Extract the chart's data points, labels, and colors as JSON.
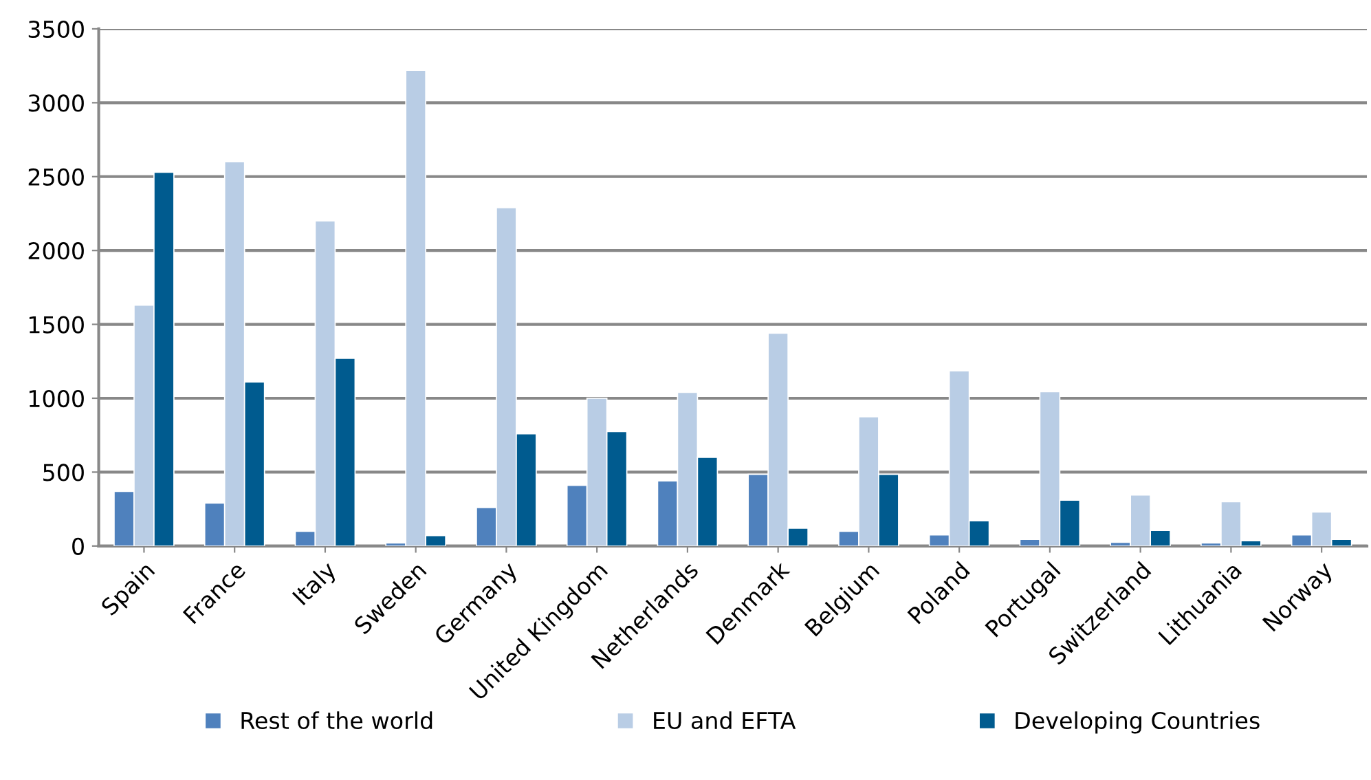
{
  "chart_data": {
    "type": "bar",
    "categories": [
      "Spain",
      "France",
      "Italy",
      "Sweden",
      "Germany",
      "United Kingdom",
      "Netherlands",
      "Denmark",
      "Belgium",
      "Poland",
      "Portugal",
      "Switzerland",
      "Lithuania",
      "Norway"
    ],
    "series": [
      {
        "name": "Rest of the world",
        "color": "#4f81bd",
        "values": [
          370,
          290,
          100,
          20,
          260,
          410,
          440,
          485,
          100,
          75,
          45,
          25,
          20,
          75
        ]
      },
      {
        "name": "EU and EFTA",
        "color": "#b9cde5",
        "values": [
          1630,
          2600,
          2200,
          3220,
          2290,
          1000,
          1040,
          1440,
          875,
          1185,
          1045,
          345,
          300,
          230
        ]
      },
      {
        "name": "Developing Countries",
        "color": "#005b8f",
        "values": [
          2530,
          1110,
          1270,
          70,
          760,
          775,
          600,
          120,
          485,
          170,
          310,
          105,
          35,
          45
        ]
      }
    ],
    "ylim": [
      0,
      3500
    ],
    "yticks": [
      0,
      500,
      1000,
      1500,
      2000,
      2500,
      3000,
      3500
    ],
    "grid": "y",
    "legend": "bottom"
  }
}
